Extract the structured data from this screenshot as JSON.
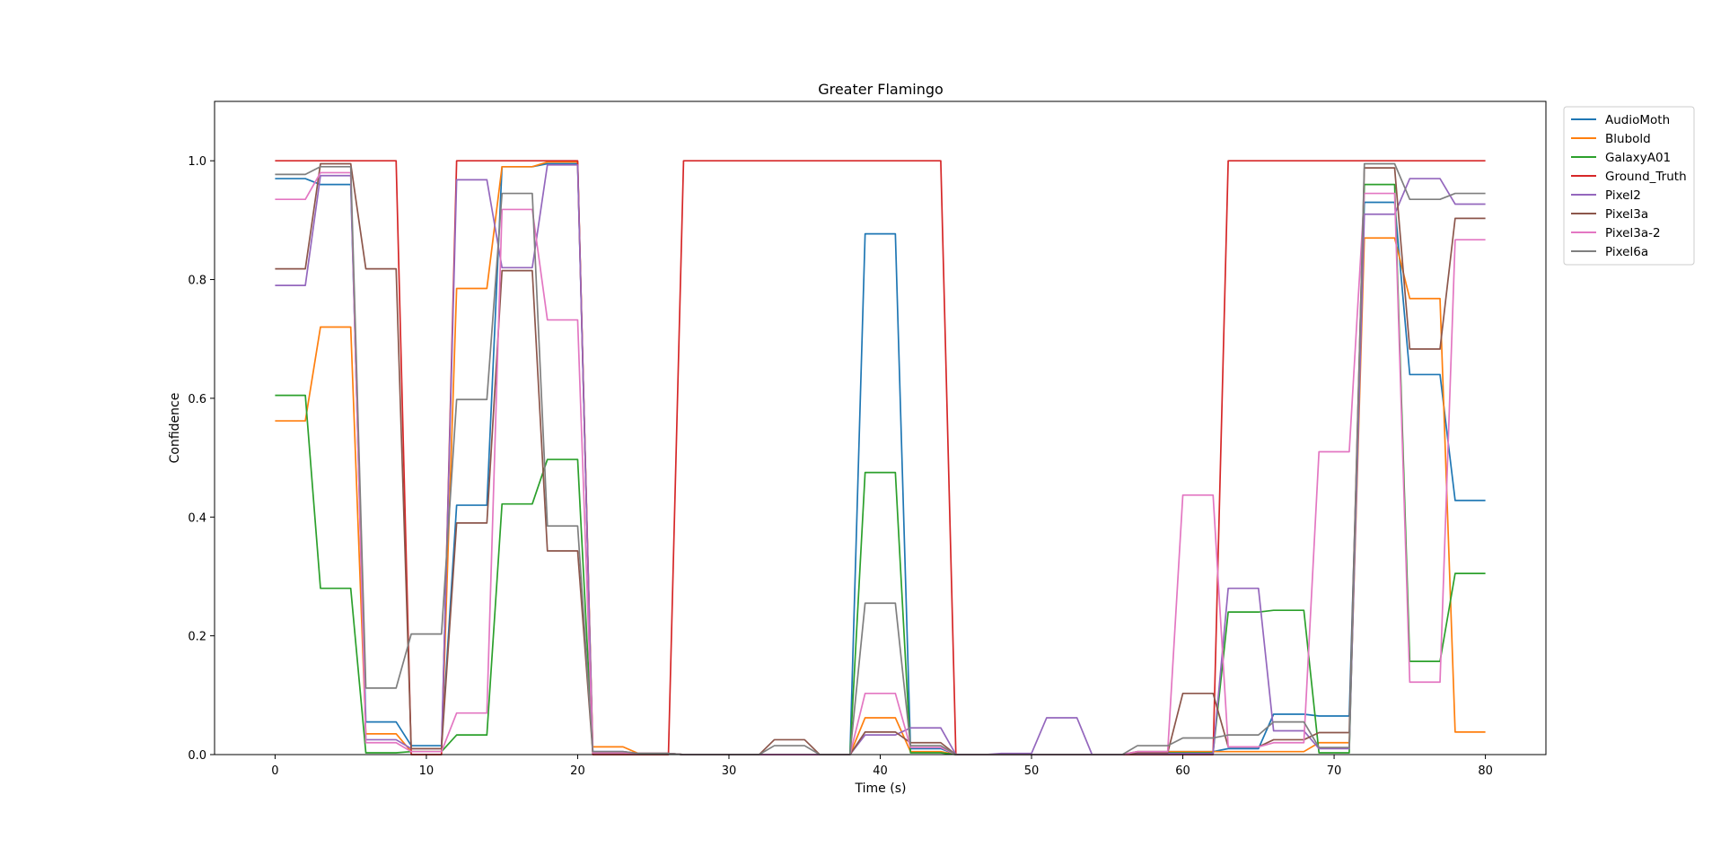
{
  "chart_data": {
    "type": "line",
    "title": "Greater Flamingo",
    "xlabel": "Time (s)",
    "ylabel": "Confidence",
    "xlim": [
      -4,
      84
    ],
    "ylim": [
      0,
      1.1
    ],
    "xticks": [
      0,
      10,
      20,
      30,
      40,
      50,
      60,
      70,
      80
    ],
    "yticks": [
      0.0,
      0.2,
      0.4,
      0.6,
      0.8,
      1.0
    ],
    "grid": false,
    "legend_position": "outside-top-right",
    "x": [
      0,
      1,
      2,
      3,
      4,
      5,
      6,
      7,
      8,
      9,
      10,
      11,
      12,
      13,
      14,
      15,
      16,
      17,
      18,
      19,
      20,
      21,
      22,
      23,
      24,
      25,
      26,
      27,
      28,
      29,
      30,
      31,
      32,
      33,
      34,
      35,
      36,
      37,
      38,
      39,
      40,
      41,
      42,
      43,
      44,
      45,
      46,
      47,
      48,
      49,
      50,
      51,
      52,
      53,
      54,
      55,
      56,
      57,
      58,
      59,
      60,
      61,
      62,
      63,
      64,
      65,
      66,
      67,
      68,
      69,
      70,
      71,
      72,
      73,
      74,
      75,
      76,
      77,
      78,
      79,
      80
    ],
    "series": [
      {
        "name": "AudioMoth",
        "color": "#1f77b4",
        "values": [
          0.97,
          0.97,
          0.97,
          0.96,
          0.96,
          0.96,
          0.055,
          0.055,
          0.055,
          0.015,
          0.015,
          0.015,
          0.42,
          0.42,
          0.42,
          0.99,
          0.99,
          0.99,
          0.995,
          0.995,
          0.995,
          0.005,
          0.005,
          0.005,
          0.002,
          0.002,
          0.002,
          0,
          0,
          0,
          0,
          0,
          0,
          0,
          0,
          0,
          0,
          0,
          0,
          0.877,
          0.877,
          0.877,
          0.01,
          0.01,
          0.01,
          0,
          0,
          0,
          0,
          0,
          0,
          0,
          0,
          0,
          0,
          0,
          0,
          0.005,
          0.005,
          0.005,
          0.005,
          0.005,
          0.005,
          0.01,
          0.01,
          0.01,
          0.068,
          0.068,
          0.068,
          0.065,
          0.065,
          0.065,
          0.93,
          0.93,
          0.93,
          0.64,
          0.64,
          0.64,
          0.428,
          0.428,
          0.428
        ]
      },
      {
        "name": "Blubold",
        "color": "#ff7f0e",
        "values": [
          0.562,
          0.562,
          0.562,
          0.72,
          0.72,
          0.72,
          0.035,
          0.035,
          0.035,
          0.005,
          0.005,
          0.005,
          0.785,
          0.785,
          0.785,
          0.99,
          0.99,
          0.99,
          0.998,
          0.998,
          0.998,
          0.013,
          0.013,
          0.013,
          0.002,
          0.002,
          0.002,
          0,
          0,
          0,
          0,
          0,
          0,
          0,
          0,
          0,
          0,
          0,
          0,
          0.062,
          0.062,
          0.062,
          0.005,
          0.005,
          0.005,
          0,
          0,
          0,
          0,
          0,
          0,
          0,
          0,
          0,
          0,
          0,
          0,
          0.005,
          0.005,
          0.005,
          0.005,
          0.005,
          0.005,
          0.005,
          0.005,
          0.005,
          0.005,
          0.005,
          0.005,
          0.02,
          0.02,
          0.02,
          0.87,
          0.87,
          0.87,
          0.768,
          0.768,
          0.768,
          0.038,
          0.038,
          0.038
        ]
      },
      {
        "name": "GalaxyA01",
        "color": "#2ca02c",
        "values": [
          0.605,
          0.605,
          0.605,
          0.28,
          0.28,
          0.28,
          0.003,
          0.003,
          0.003,
          0.005,
          0.005,
          0.005,
          0.033,
          0.033,
          0.033,
          0.422,
          0.422,
          0.422,
          0.497,
          0.497,
          0.497,
          0.003,
          0.003,
          0.003,
          0.002,
          0.002,
          0.002,
          0,
          0,
          0,
          0,
          0,
          0,
          0,
          0,
          0,
          0,
          0,
          0,
          0.475,
          0.475,
          0.475,
          0.003,
          0.003,
          0.003,
          0,
          0,
          0,
          0,
          0,
          0,
          0,
          0,
          0,
          0,
          0,
          0,
          0.003,
          0.003,
          0.003,
          0.003,
          0.003,
          0.003,
          0.24,
          0.24,
          0.24,
          0.243,
          0.243,
          0.243,
          0.003,
          0.003,
          0.003,
          0.96,
          0.96,
          0.96,
          0.157,
          0.157,
          0.157,
          0.305,
          0.305,
          0.305
        ]
      },
      {
        "name": "Ground_Truth",
        "color": "#d62728",
        "values": [
          1,
          1,
          1,
          1,
          1,
          1,
          1,
          1,
          1,
          0,
          0,
          0,
          1,
          1,
          1,
          1,
          1,
          1,
          1,
          1,
          1,
          0,
          0,
          0,
          0,
          0,
          0,
          1,
          1,
          1,
          1,
          1,
          1,
          1,
          1,
          1,
          1,
          1,
          1,
          1,
          1,
          1,
          1,
          1,
          1,
          0,
          0,
          0,
          0,
          0,
          0,
          0,
          0,
          0,
          0,
          0,
          0,
          0,
          0,
          0,
          0,
          0,
          0,
          1,
          1,
          1,
          1,
          1,
          1,
          1,
          1,
          1,
          1,
          1,
          1,
          1,
          1,
          1,
          1,
          1,
          1
        ]
      },
      {
        "name": "Pixel2",
        "color": "#9467bd",
        "values": [
          0.79,
          0.79,
          0.79,
          0.975,
          0.975,
          0.975,
          0.025,
          0.025,
          0.025,
          0.01,
          0.01,
          0.01,
          0.968,
          0.968,
          0.968,
          0.82,
          0.82,
          0.82,
          0.993,
          0.993,
          0.993,
          0.005,
          0.005,
          0.005,
          0.002,
          0.002,
          0.002,
          0,
          0,
          0,
          0,
          0,
          0,
          0,
          0,
          0,
          0,
          0,
          0,
          0.033,
          0.033,
          0.033,
          0.045,
          0.045,
          0.045,
          0,
          0,
          0,
          0.002,
          0.002,
          0.002,
          0.062,
          0.062,
          0.062,
          0,
          0,
          0,
          0.002,
          0.002,
          0.002,
          0.002,
          0.002,
          0.002,
          0.28,
          0.28,
          0.28,
          0.04,
          0.04,
          0.04,
          0.01,
          0.01,
          0.01,
          0.91,
          0.91,
          0.91,
          0.97,
          0.97,
          0.97,
          0.927,
          0.927,
          0.927
        ]
      },
      {
        "name": "Pixel3a",
        "color": "#8c564b",
        "values": [
          0.818,
          0.818,
          0.818,
          0.995,
          0.995,
          0.995,
          0.818,
          0.818,
          0.818,
          0.01,
          0.01,
          0.01,
          0.39,
          0.39,
          0.39,
          0.815,
          0.815,
          0.815,
          0.343,
          0.343,
          0.343,
          0.003,
          0.003,
          0.003,
          0.002,
          0.002,
          0.002,
          0,
          0,
          0,
          0,
          0,
          0,
          0.025,
          0.025,
          0.025,
          0,
          0,
          0,
          0.038,
          0.038,
          0.038,
          0.02,
          0.02,
          0.02,
          0,
          0,
          0,
          0,
          0,
          0,
          0,
          0,
          0,
          0,
          0,
          0,
          0.003,
          0.003,
          0.003,
          0.103,
          0.103,
          0.103,
          0.013,
          0.013,
          0.013,
          0.025,
          0.025,
          0.025,
          0.037,
          0.037,
          0.037,
          0.988,
          0.988,
          0.988,
          0.683,
          0.683,
          0.683,
          0.903,
          0.903,
          0.903
        ]
      },
      {
        "name": "Pixel3a-2",
        "color": "#e377c2",
        "values": [
          0.935,
          0.935,
          0.935,
          0.98,
          0.98,
          0.98,
          0.02,
          0.02,
          0.02,
          0.005,
          0.005,
          0.005,
          0.07,
          0.07,
          0.07,
          0.918,
          0.918,
          0.918,
          0.732,
          0.732,
          0.732,
          0.003,
          0.003,
          0.003,
          0.002,
          0.002,
          0.002,
          0,
          0,
          0,
          0,
          0,
          0,
          0,
          0,
          0,
          0,
          0,
          0,
          0.103,
          0.103,
          0.103,
          0.012,
          0.012,
          0.012,
          0,
          0,
          0,
          0,
          0,
          0,
          0,
          0,
          0,
          0,
          0,
          0,
          0.005,
          0.005,
          0.005,
          0.437,
          0.437,
          0.437,
          0.013,
          0.013,
          0.013,
          0.02,
          0.02,
          0.02,
          0.51,
          0.51,
          0.51,
          0.945,
          0.945,
          0.945,
          0.122,
          0.122,
          0.122,
          0.867,
          0.867,
          0.867
        ]
      },
      {
        "name": "Pixel6a",
        "color": "#7f7f7f",
        "values": [
          0.977,
          0.977,
          0.977,
          0.99,
          0.99,
          0.99,
          0.112,
          0.112,
          0.112,
          0.203,
          0.203,
          0.203,
          0.598,
          0.598,
          0.598,
          0.945,
          0.945,
          0.945,
          0.385,
          0.385,
          0.385,
          0.005,
          0.005,
          0.005,
          0.002,
          0.002,
          0.002,
          0,
          0,
          0,
          0,
          0,
          0,
          0.015,
          0.015,
          0.015,
          0,
          0,
          0,
          0.255,
          0.255,
          0.255,
          0.015,
          0.015,
          0.015,
          0,
          0,
          0,
          0,
          0,
          0,
          0,
          0,
          0,
          0,
          0,
          0,
          0.015,
          0.015,
          0.015,
          0.028,
          0.028,
          0.028,
          0.033,
          0.033,
          0.033,
          0.055,
          0.055,
          0.055,
          0.012,
          0.012,
          0.012,
          0.995,
          0.995,
          0.995,
          0.935,
          0.935,
          0.935,
          0.945,
          0.945,
          0.945
        ]
      }
    ]
  }
}
